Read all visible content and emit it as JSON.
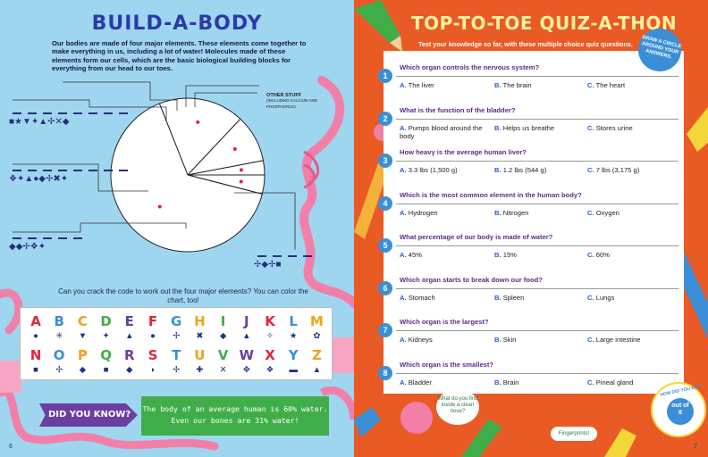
{
  "left_page": {
    "title": "BUILD-A-BODY",
    "intro": "Our bodies are made of four major elements. These elements come together to make everything in us, including a lot of water! Molecules made of these elements form our cells, which are the basic biological building blocks for everything from our head to our toes.",
    "other_stuff_label": "OTHER STUFF",
    "other_stuff_sub": "(INCLUDING CALCIUM AND PHOSPHORUS)",
    "code_rows": [
      "■★▼✦▲✢✕◆",
      "❖✦▲●◆✢✖✦",
      "◆◆✢❖✦",
      "✢◆✢■"
    ],
    "crack_text": "Can you crack the code to work out the four major elements? You can color the chart, too!",
    "alphabet": [
      "A",
      "B",
      "C",
      "D",
      "E",
      "F",
      "G",
      "H",
      "I",
      "J",
      "K",
      "L",
      "M",
      "N",
      "O",
      "P",
      "Q",
      "R",
      "S",
      "T",
      "U",
      "V",
      "W",
      "X",
      "Y",
      "Z"
    ],
    "alphabet_symbols": [
      "●",
      "✳",
      "▼",
      "✦",
      "▲",
      "●",
      "✢",
      "✖",
      "◆",
      "▲",
      "✧",
      "★",
      "✿",
      "■",
      "✢",
      "◆",
      "■",
      "◆",
      "◗",
      "✢",
      "✚",
      "✕",
      "✥",
      "❖",
      "▬",
      "▲"
    ],
    "did_you_know": "DID YOU KNOW?",
    "fact_line1": "The body of an average human is 60% water.",
    "fact_line2": "Even our bones are 31% water!",
    "page_number": "6"
  },
  "right_page": {
    "title": "TOP-TO-TOE QUIZ-A-THON",
    "subtitle": "Test your knowledge so far, with these multiple choice quiz questions.",
    "badge": "DRAW A CIRCLE AROUND YOUR ANSWERS.",
    "questions": [
      {
        "num": "1",
        "text": "Which organ controls the nervous system?",
        "a": "The liver",
        "b": "The brain",
        "c": "The heart"
      },
      {
        "num": "2",
        "text": "What is the function of the bladder?",
        "a": "Pumps blood around the body",
        "b": "Helps us breathe",
        "c": "Stores urine"
      },
      {
        "num": "3",
        "text": "How heavy is the average human liver?",
        "a": "3.3  lbs (1,500 g)",
        "b": "1.2 lbs (544 g)",
        "c": "7 lbs (3,175 g)"
      },
      {
        "num": "4",
        "text": "Which is the most common element in the human body?",
        "a": "Hydrogen",
        "b": "Nitrogen",
        "c": "Oxygen"
      },
      {
        "num": "5",
        "text": "What percentage of our body is made of water?",
        "a": "45%",
        "b": "15%",
        "c": "60%"
      },
      {
        "num": "6",
        "text": "Which organ starts to break down our food?",
        "a": "Stomach",
        "b": "Spleen",
        "c": "Lungs"
      },
      {
        "num": "7",
        "text": "Which organ is the largest?",
        "a": "Kidneys",
        "b": "Skin",
        "c": "Large intestine"
      },
      {
        "num": "8",
        "text": "Which organ is the smallest?",
        "a": "Bladder",
        "b": "Brain",
        "c": "Pineal gland"
      }
    ],
    "labels": {
      "a": "A.",
      "b": "B.",
      "c": "C."
    },
    "score_label": "HOW DID YOU DO?",
    "score_out_of": "out of",
    "score_total": "8",
    "bubble_text": "What do you find inside a clean nose?",
    "bubble_answer": "Fingerprints!",
    "page_number": "7"
  },
  "colors": {
    "left_bg": "#9fd6ef",
    "right_bg": "#ea5a25",
    "title_blue": "#2b3aa8",
    "title_yellow": "#fff0a0",
    "question_purple": "#5b2a8c",
    "number_blue": "#3a8fd8"
  },
  "chart_data": {
    "type": "pie",
    "slices": [
      {
        "value": 65
      },
      {
        "value": 18
      },
      {
        "value": 10
      },
      {
        "value": 3
      },
      {
        "value": 4
      }
    ]
  }
}
